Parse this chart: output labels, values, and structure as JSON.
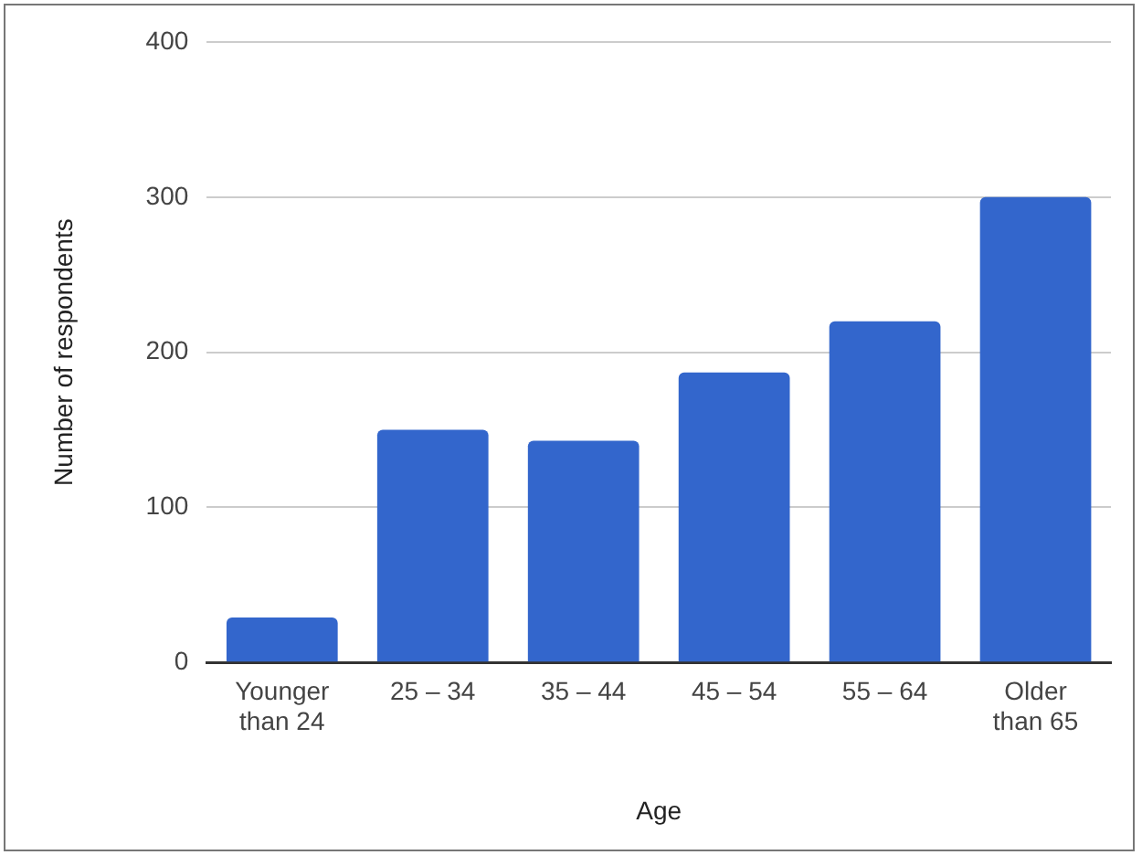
{
  "chart_data": {
    "type": "bar",
    "xlabel": "Age",
    "ylabel": "Number of respondents",
    "categories": [
      "Younger than 24",
      "25 – 34",
      "35 – 44",
      "45 – 54",
      "55 – 64",
      "Older than 65"
    ],
    "values": [
      29,
      150,
      143,
      187,
      220,
      300
    ],
    "color": "#3366cc",
    "ylim": [
      0,
      400
    ],
    "yticks": [
      0,
      100,
      200,
      300,
      400
    ],
    "grid": "y"
  }
}
